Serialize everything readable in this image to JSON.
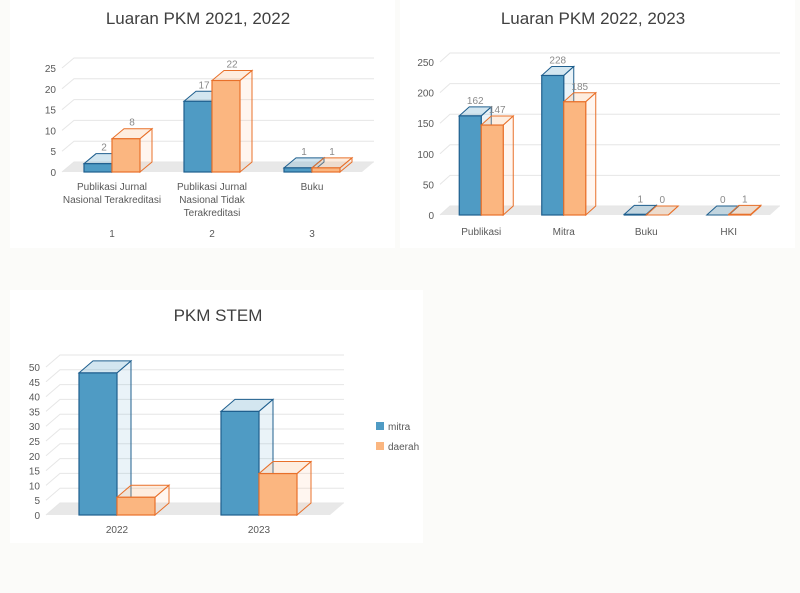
{
  "chart_data": [
    {
      "type": "bar",
      "title": "Luaran PKM 2021, 2022",
      "categories": [
        "Publikasi Jurnal Nasional Terakreditasi",
        "Publikasi Jurnal Nasional Tidak Terakreditasi",
        "Buku"
      ],
      "category_lines": [
        [
          "Publikasi Jurnal",
          "Nasional Terakreditasi"
        ],
        [
          "Publikasi Jurnal",
          "Nasional Tidak",
          "Terakreditasi"
        ],
        [
          "Buku"
        ]
      ],
      "secondary_categories": [
        "1",
        "2",
        "3"
      ],
      "series": [
        {
          "values": [
            2,
            17,
            1
          ]
        },
        {
          "values": [
            8,
            22,
            1
          ]
        }
      ],
      "ylim": [
        0,
        25
      ],
      "yticks": [
        0,
        5,
        10,
        15,
        20,
        25
      ],
      "data_labels": true,
      "legend": "none"
    },
    {
      "type": "bar",
      "title": "Luaran PKM 2022, 2023",
      "categories": [
        "Publikasi",
        "Mitra",
        "Buku",
        "HKI"
      ],
      "series": [
        {
          "values": [
            162,
            228,
            1,
            0
          ]
        },
        {
          "values": [
            147,
            185,
            0,
            1
          ]
        }
      ],
      "ylim": [
        0,
        250
      ],
      "yticks": [
        0,
        50,
        100,
        150,
        200,
        250
      ],
      "data_labels": true,
      "legend": "none"
    },
    {
      "type": "bar",
      "title": "PKM STEM",
      "categories": [
        "2022",
        "2023"
      ],
      "series": [
        {
          "name": "mitra",
          "values": [
            48,
            35
          ]
        },
        {
          "name": "daerah",
          "values": [
            6,
            14
          ]
        }
      ],
      "ylim": [
        0,
        50
      ],
      "yticks": [
        0,
        5,
        10,
        15,
        20,
        25,
        30,
        35,
        40,
        45,
        50
      ],
      "data_labels": false,
      "legend": "right"
    }
  ],
  "colors": {
    "series1_fill": "#4f9bc4",
    "series1_edge": "#1f5f8e",
    "series2_fill": "#fbb680",
    "series2_edge": "#e8702a",
    "grid": "#e6e6e6",
    "floor": "#e8e8e8",
    "text": "#595959",
    "title": "#404040"
  }
}
